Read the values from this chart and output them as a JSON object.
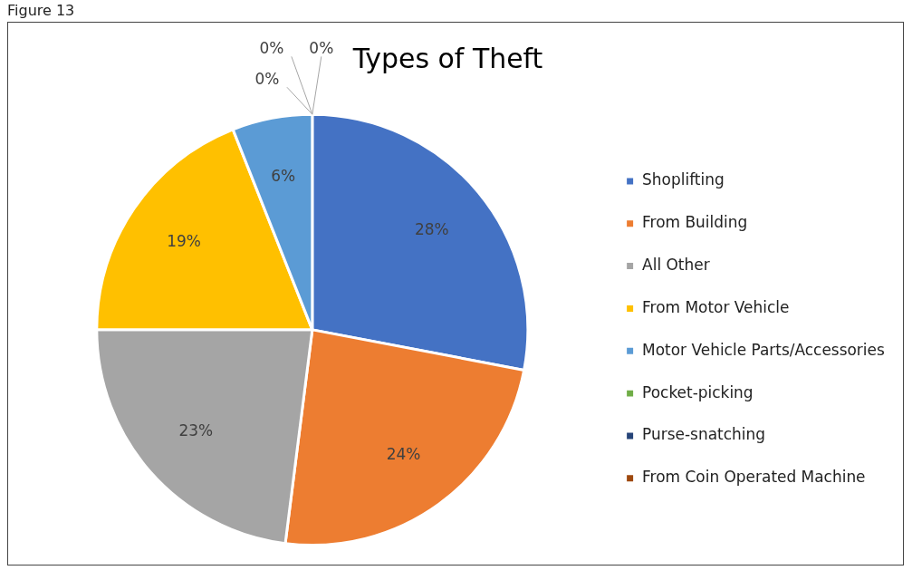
{
  "chart_data": {
    "type": "pie",
    "title": "Types of Theft",
    "annotations": [
      "Figure 13"
    ],
    "categories": [
      "Shoplifting",
      "From Building",
      "All Other",
      "From Motor Vehicle",
      "Motor Vehicle Parts/Accessories",
      "Pocket-picking",
      "Purse-snatching",
      "From Coin Operated Machine"
    ],
    "values": [
      28,
      24,
      23,
      19,
      6,
      0,
      0,
      0
    ],
    "colors": [
      "#4472c4",
      "#ed7d31",
      "#a5a5a5",
      "#ffc000",
      "#5b9bd5",
      "#70ad47",
      "#264478",
      "#9e480e"
    ],
    "value_labels": [
      "28%",
      "24%",
      "23%",
      "19%",
      "6%",
      "0%",
      "0%",
      "0%"
    ],
    "legend": "right"
  }
}
